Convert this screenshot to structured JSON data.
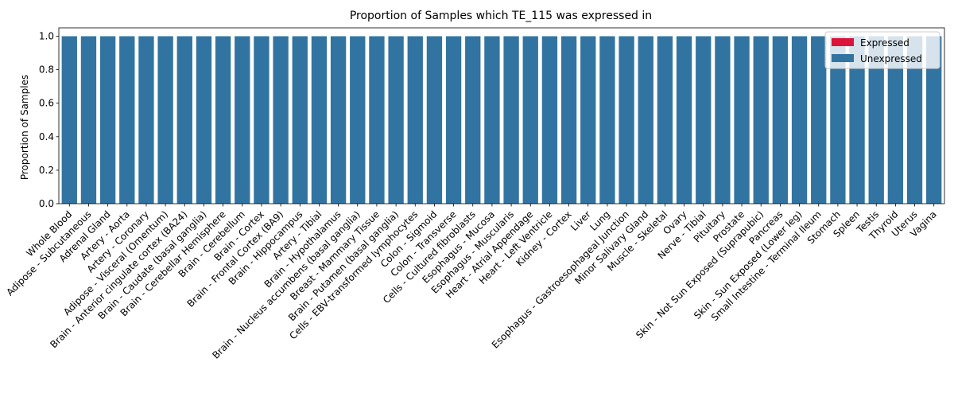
{
  "chart_data": {
    "type": "bar",
    "stacked": true,
    "title": "Proportion of Samples which TE_115 was expressed in",
    "xlabel": "",
    "ylabel": "Proportion of Samples",
    "ylim": [
      0,
      1.05
    ],
    "yticks": [
      "0.0",
      "0.2",
      "0.4",
      "0.6",
      "0.8",
      "1.0"
    ],
    "grid": false,
    "legend_position": "top-right",
    "categories": [
      "Whole Blood",
      "Adipose - Subcutaneous",
      "Adrenal Gland",
      "Artery - Aorta",
      "Artery - Coronary",
      "Adipose - Visceral (Omentum)",
      "Brain - Anterior cingulate cortex (BA24)",
      "Brain - Caudate (basal ganglia)",
      "Brain - Cerebellar Hemisphere",
      "Brain - Cerebellum",
      "Brain - Cortex",
      "Brain - Frontal Cortex (BA9)",
      "Brain - Hippocampus",
      "Artery - Tibial",
      "Brain - Hypothalamus",
      "Brain - Nucleus accumbens (basal ganglia)",
      "Breast - Mammary Tissue",
      "Brain - Putamen (basal ganglia)",
      "Cells - EBV-transformed lymphocytes",
      "Colon - Sigmoid",
      "Colon - Transverse",
      "Cells - Cultured fibroblasts",
      "Esophagus - Mucosa",
      "Esophagus - Muscularis",
      "Heart - Atrial Appendage",
      "Heart - Left Ventricle",
      "Kidney - Cortex",
      "Liver",
      "Lung",
      "Esophagus - Gastroesophageal Junction",
      "Minor Salivary Gland",
      "Muscle - Skeletal",
      "Ovary",
      "Nerve - Tibial",
      "Pituitary",
      "Prostate",
      "Skin - Not Sun Exposed (Suprapubic)",
      "Pancreas",
      "Skin - Sun Exposed (Lower leg)",
      "Small Intestine - Terminal Ileum",
      "Stomach",
      "Spleen",
      "Testis",
      "Thyroid",
      "Uterus",
      "Vagina"
    ],
    "series": [
      {
        "name": "Expressed",
        "color": "#dc143c",
        "values": [
          0,
          0,
          0,
          0,
          0,
          0,
          0,
          0,
          0,
          0,
          0,
          0,
          0,
          0,
          0,
          0,
          0,
          0,
          0,
          0,
          0,
          0,
          0,
          0,
          0,
          0,
          0,
          0,
          0,
          0,
          0,
          0,
          0,
          0,
          0,
          0,
          0,
          0,
          0,
          0,
          0,
          0,
          0,
          0,
          0,
          0
        ]
      },
      {
        "name": "Unexpressed",
        "color": "#3274a1",
        "values": [
          1,
          1,
          1,
          1,
          1,
          1,
          1,
          1,
          1,
          1,
          1,
          1,
          1,
          1,
          1,
          1,
          1,
          1,
          1,
          1,
          1,
          1,
          1,
          1,
          1,
          1,
          1,
          1,
          1,
          1,
          1,
          1,
          1,
          1,
          1,
          1,
          1,
          1,
          1,
          1,
          1,
          1,
          1,
          1,
          1,
          1
        ]
      }
    ]
  }
}
